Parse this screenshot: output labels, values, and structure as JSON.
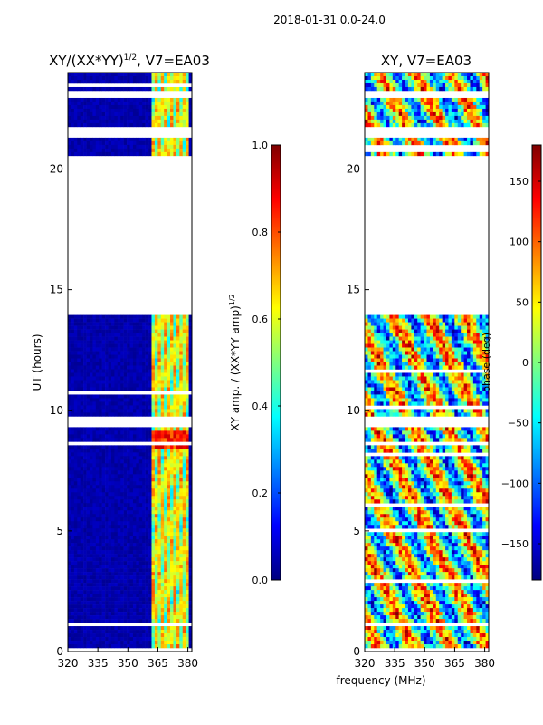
{
  "figure_title": "2018-01-31 0.0-24.0",
  "shared_xlabel": "frequency (MHz)",
  "colors": {
    "jet": [
      "#00007f",
      "#0000ff",
      "#007fff",
      "#00ffff",
      "#7fff7f",
      "#ffff00",
      "#ff7f00",
      "#ff0000",
      "#7f0000"
    ],
    "background": "#ffffff",
    "axis": "#000000"
  },
  "chart_data": [
    {
      "type": "heatmap",
      "title_text": "XY/(XX*YY)",
      "title_superscript": "1/2",
      "title_suffix": ", V7=EA03",
      "xlabel": "",
      "ylabel": "UT (hours)",
      "xlim": [
        320,
        382
      ],
      "ylim": [
        0,
        24
      ],
      "xticks": [
        "320",
        "335",
        "350",
        "365",
        "380"
      ],
      "xtick_values": [
        320,
        335,
        350,
        365,
        380
      ],
      "yticks": [
        "0",
        "5",
        "10",
        "15",
        "20"
      ],
      "ytick_values": [
        0,
        5,
        10,
        15,
        20
      ],
      "colorbar": {
        "label": "XY amp. / (XX*YY amp)",
        "label_superscript": "1/2",
        "range": [
          0.0,
          1.0
        ],
        "ticks": [
          "0.0",
          "0.2",
          "0.4",
          "0.6",
          "0.8",
          "1.0"
        ],
        "tick_values": [
          0.0,
          0.2,
          0.4,
          0.6,
          0.8,
          1.0
        ]
      },
      "flagged_ut_ranges": [
        [
          0.05,
          0.15
        ],
        [
          1.0,
          1.2
        ],
        [
          8.6,
          8.7
        ],
        [
          9.3,
          9.8
        ],
        [
          14.0,
          20.6
        ],
        [
          21.3,
          21.8
        ],
        [
          23.0,
          23.3
        ],
        [
          23.5,
          23.55
        ]
      ],
      "active_band_mhz": [
        362,
        381
      ],
      "description_of_values": "near 0 outside 362-381 MHz band; 0.3-0.7 in band; up to ~0.9 near 8.5-9 h"
    },
    {
      "type": "heatmap",
      "title_text": "XY, V7=EA03",
      "xlabel": "",
      "ylabel": "",
      "xlim": [
        320,
        382
      ],
      "ylim": [
        0,
        24
      ],
      "xticks": [
        "320",
        "335",
        "350",
        "365",
        "380"
      ],
      "xtick_values": [
        320,
        335,
        350,
        365,
        380
      ],
      "yticks": [
        "0",
        "5",
        "10",
        "15",
        "20"
      ],
      "ytick_values": [
        0,
        5,
        10,
        15,
        20
      ],
      "colorbar": {
        "label": "phase (deg)",
        "range": [
          -180,
          180
        ],
        "ticks": [
          "−150",
          "−100",
          "−50",
          "0",
          "50",
          "100",
          "150"
        ],
        "tick_values": [
          -150,
          -100,
          -50,
          0,
          50,
          100,
          150
        ]
      },
      "flagged_ut_ranges": [
        [
          0.05,
          0.15
        ],
        [
          1.0,
          1.2
        ],
        [
          8.6,
          8.7
        ],
        [
          9.3,
          9.8
        ],
        [
          14.0,
          20.6
        ],
        [
          21.3,
          21.8
        ],
        [
          23.0,
          23.3
        ],
        [
          23.5,
          23.55
        ]
      ]
    }
  ]
}
